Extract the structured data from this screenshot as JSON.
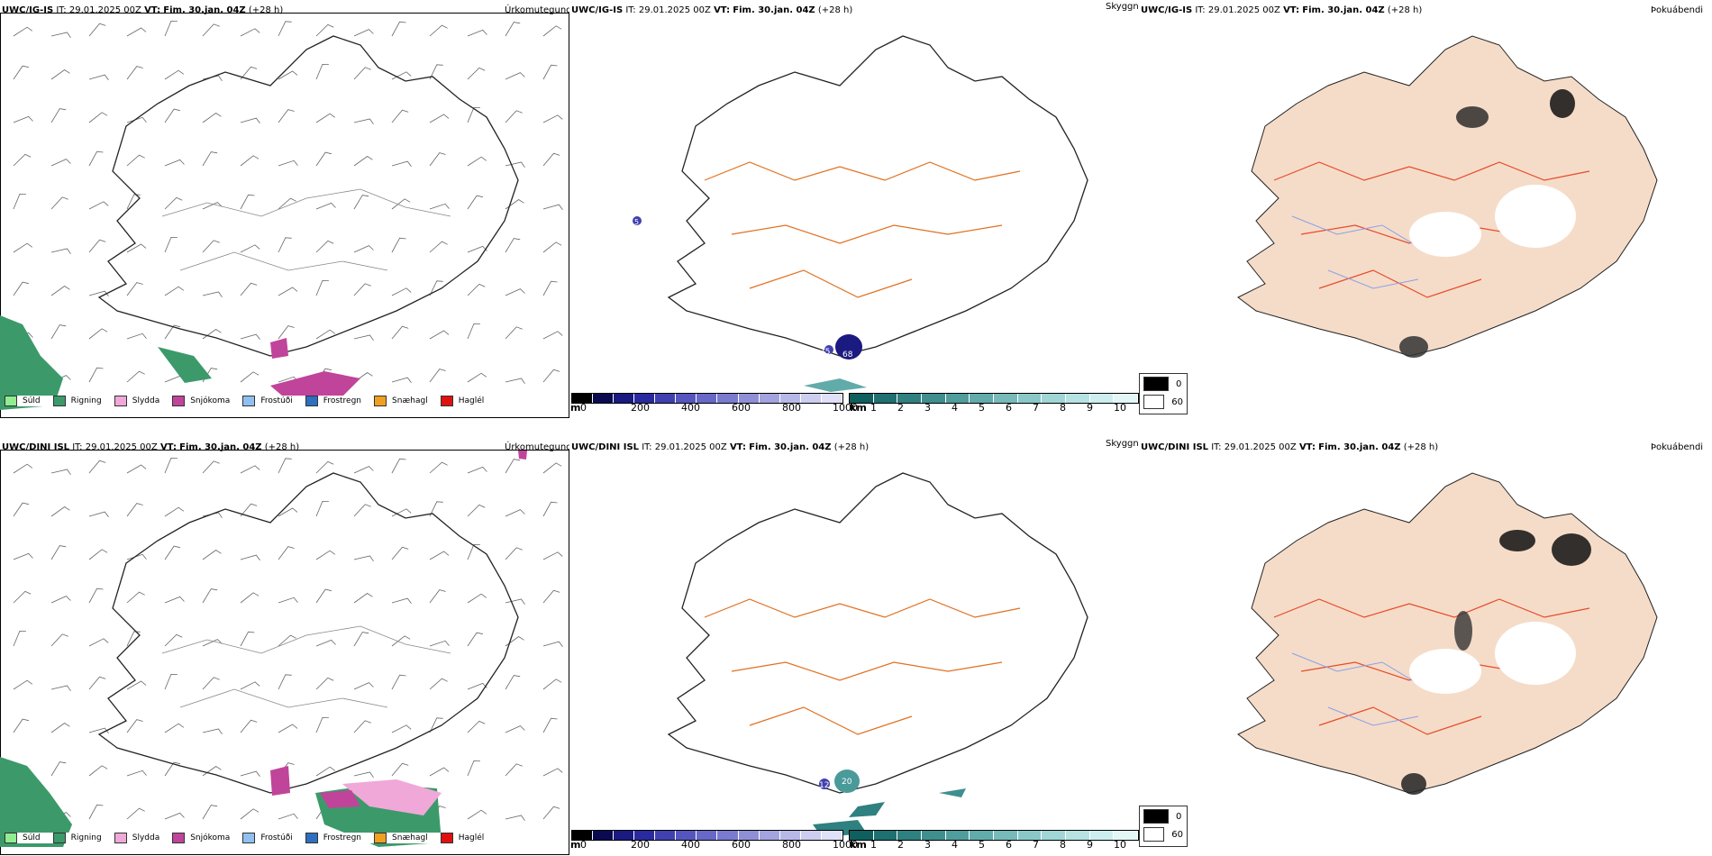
{
  "rows": [
    {
      "model": "UWC/IG-IS",
      "it_label": "IT:",
      "it_value": "29.01.2025 00Z",
      "vt_label": "VT:",
      "vt_value": "Fim. 30.jan. 04Z",
      "lead": "(+28 h)",
      "titles": {
        "precip": "Úrkomutegund",
        "vis": "Skyggni",
        "fog": "Þokuábendi"
      },
      "labels": [
        "75",
        "68",
        "5"
      ]
    },
    {
      "model": "UWC/DINI ISL",
      "it_label": "IT:",
      "it_value": "29.01.2025 00Z",
      "vt_label": "VT:",
      "vt_value": "Fim. 30.jan. 04Z",
      "lead": "(+28 h)",
      "titles": {
        "precip": "Úrkomutegund",
        "vis": "Skyggni",
        "fog": "Þokuábendi"
      },
      "labels": [
        "12",
        "20"
      ]
    }
  ],
  "precip_legend": [
    {
      "label": "Súld",
      "color": "#90ee90"
    },
    {
      "label": "Rigning",
      "color": "#3c9a6a"
    },
    {
      "label": "Slydda",
      "color": "#f0a8d8"
    },
    {
      "label": "Snjókoma",
      "color": "#c0449a"
    },
    {
      "label": "Frostúði",
      "color": "#90c0f0"
    },
    {
      "label": "Frostregn",
      "color": "#2e6fc0"
    },
    {
      "label": "Snæhagl",
      "color": "#f0a020"
    },
    {
      "label": "Haglél",
      "color": "#e01010"
    }
  ],
  "elevation_bar": {
    "unit": "m",
    "ticks": [
      "0",
      "200",
      "400",
      "600",
      "800",
      "1000"
    ],
    "colors": [
      "#000000",
      "#0a0a50",
      "#1a1a80",
      "#2a2aa0",
      "#4040b0",
      "#5555c0",
      "#6868c8",
      "#7a7ad0",
      "#8f8fd8",
      "#a3a3e0",
      "#b8b8e8",
      "#cdcdf0",
      "#e0e0f8"
    ]
  },
  "visibility_bar": {
    "unit": "km",
    "ticks": [
      "1",
      "2",
      "3",
      "4",
      "5",
      "6",
      "7",
      "8",
      "9",
      "10"
    ],
    "colors": [
      "#0f5f5f",
      "#1f7070",
      "#2f8080",
      "#3f8f8f",
      "#509d9d",
      "#62abab",
      "#76baba",
      "#8ac8c8",
      "#a0d6d6",
      "#b6e2e2",
      "#cdeeee",
      "#e4f7f7"
    ]
  },
  "fog_legend": [
    {
      "label": "0",
      "color": "#000000"
    },
    {
      "label": "60",
      "color": "#ffffff"
    }
  ],
  "colors": {
    "land_fog": "#f5dcc8",
    "roads": "#e07020",
    "roads_fog": "#e84a2a",
    "rivers": "#8aa0e8",
    "rain": "#3c9a6a",
    "snow": "#c0449a",
    "sleet": "#f0a8d8"
  }
}
